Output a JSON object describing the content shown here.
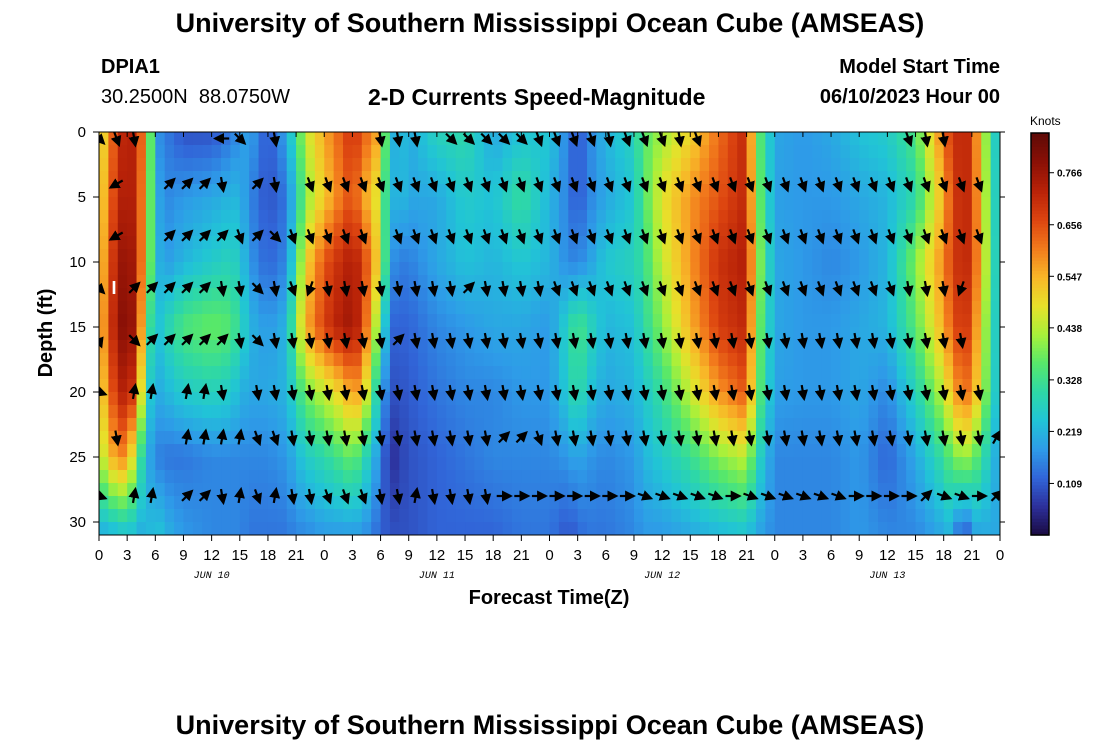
{
  "page": {
    "title": "University of Southern Mississippi Ocean Cube (AMSEAS)",
    "station_id": "DPIA1",
    "station_coords": "30.2500N  88.0750W",
    "subtitle": "2-D Currents Speed-Magnitude",
    "model_start_label": "Model Start Time",
    "model_start_value": "06/10/2023 Hour 00",
    "footer_title": "University of Southern Mississippi Ocean Cube (AMSEAS)"
  },
  "chart_data": {
    "type": "heatmap",
    "title": "2-D Currents Speed-Magnitude",
    "xlabel": "Forecast Time(Z)",
    "ylabel": "Depth (ft)",
    "x_unit": "hours since 06/10/2023 00Z",
    "xlim": [
      0,
      96
    ],
    "ylim": [
      31,
      0
    ],
    "x_ticks": [
      0,
      3,
      6,
      9,
      12,
      15,
      18,
      21,
      24,
      27,
      30,
      33,
      36,
      39,
      42,
      45,
      48,
      51,
      54,
      57,
      60,
      63,
      66,
      69,
      72,
      75,
      78,
      81,
      84,
      87,
      90,
      93,
      96
    ],
    "x_tick_labels": [
      "0",
      "3",
      "6",
      "9",
      "12",
      "15",
      "18",
      "21",
      "0",
      "3",
      "6",
      "9",
      "12",
      "15",
      "18",
      "21",
      "0",
      "3",
      "6",
      "9",
      "12",
      "15",
      "18",
      "21",
      "0",
      "3",
      "6",
      "9",
      "12",
      "15",
      "18",
      "21",
      "0"
    ],
    "date_labels": [
      {
        "hour": 12,
        "text": "JUN 10"
      },
      {
        "hour": 36,
        "text": "JUN 11"
      },
      {
        "hour": 60,
        "text": "JUN 12"
      },
      {
        "hour": 84,
        "text": "JUN 13"
      }
    ],
    "y_ticks": [
      0,
      5,
      10,
      15,
      20,
      25,
      30
    ],
    "y_tick_labels": [
      "0",
      "5",
      "10",
      "15",
      "20",
      "25",
      "30"
    ],
    "colorbar": {
      "label": "Knots",
      "min": 0.0,
      "max": 0.85,
      "ticks": [
        0.109,
        0.219,
        0.328,
        0.438,
        0.547,
        0.656,
        0.766
      ],
      "tick_labels": [
        "0.109",
        "0.219",
        "0.328",
        "0.438",
        "0.547",
        "0.656",
        "0.766"
      ],
      "colors": [
        "#1a0a40",
        "#2c2f9a",
        "#3165d8",
        "#2e9be8",
        "#21c4d6",
        "#2ed8a6",
        "#57e86a",
        "#a8f03a",
        "#e8e02a",
        "#f8b628",
        "#f27a1c",
        "#dc4410",
        "#b82208",
        "#8a1006",
        "#5e0a06"
      ]
    },
    "speed_field": {
      "times": [
        0,
        2,
        3,
        4,
        5,
        6,
        7,
        9,
        12,
        14,
        15,
        16,
        18,
        20,
        21,
        22,
        24,
        26,
        27,
        28,
        30,
        31,
        32,
        33,
        36,
        39,
        42,
        45,
        48,
        50,
        51,
        52,
        54,
        57,
        58,
        60,
        63,
        66,
        69,
        70,
        72,
        75,
        78,
        81,
        84,
        87,
        90,
        91,
        92,
        93,
        94,
        96
      ],
      "depths": [
        0,
        5,
        10,
        15,
        20,
        25,
        31
      ],
      "values": [
        [
          0.45,
          0.7,
          0.74,
          0.72,
          0.55,
          0.18,
          0.15,
          0.1,
          0.1,
          0.14,
          0.17,
          0.2,
          0.1,
          0.2,
          0.32,
          0.45,
          0.56,
          0.65,
          0.7,
          0.65,
          0.55,
          0.18,
          0.25,
          0.2,
          0.28,
          0.3,
          0.2,
          0.24,
          0.25,
          0.15,
          0.1,
          0.15,
          0.22,
          0.28,
          0.36,
          0.42,
          0.5,
          0.62,
          0.72,
          0.4,
          0.2,
          0.18,
          0.2,
          0.24,
          0.26,
          0.35,
          0.62,
          0.7,
          0.72,
          0.7,
          0.48,
          0.2
        ],
        [
          0.48,
          0.72,
          0.75,
          0.72,
          0.52,
          0.22,
          0.16,
          0.18,
          0.2,
          0.22,
          0.22,
          0.16,
          0.1,
          0.14,
          0.26,
          0.4,
          0.52,
          0.62,
          0.66,
          0.58,
          0.45,
          0.2,
          0.24,
          0.2,
          0.2,
          0.26,
          0.24,
          0.32,
          0.22,
          0.15,
          0.1,
          0.15,
          0.2,
          0.25,
          0.35,
          0.48,
          0.58,
          0.65,
          0.72,
          0.42,
          0.19,
          0.18,
          0.18,
          0.2,
          0.22,
          0.3,
          0.55,
          0.68,
          0.72,
          0.7,
          0.5,
          0.2
        ],
        [
          0.5,
          0.76,
          0.78,
          0.74,
          0.5,
          0.24,
          0.18,
          0.22,
          0.26,
          0.28,
          0.26,
          0.18,
          0.12,
          0.16,
          0.32,
          0.5,
          0.65,
          0.72,
          0.74,
          0.7,
          0.48,
          0.18,
          0.15,
          0.15,
          0.2,
          0.24,
          0.22,
          0.25,
          0.22,
          0.16,
          0.16,
          0.18,
          0.25,
          0.28,
          0.32,
          0.45,
          0.58,
          0.7,
          0.74,
          0.45,
          0.2,
          0.18,
          0.16,
          0.18,
          0.22,
          0.4,
          0.6,
          0.68,
          0.72,
          0.7,
          0.52,
          0.2
        ],
        [
          0.52,
          0.78,
          0.8,
          0.75,
          0.4,
          0.22,
          0.28,
          0.35,
          0.38,
          0.36,
          0.3,
          0.22,
          0.18,
          0.22,
          0.4,
          0.55,
          0.68,
          0.75,
          0.76,
          0.7,
          0.35,
          0.12,
          0.12,
          0.12,
          0.16,
          0.18,
          0.2,
          0.2,
          0.18,
          0.28,
          0.35,
          0.3,
          0.22,
          0.24,
          0.3,
          0.4,
          0.55,
          0.68,
          0.72,
          0.42,
          0.2,
          0.18,
          0.18,
          0.2,
          0.22,
          0.36,
          0.56,
          0.65,
          0.7,
          0.66,
          0.48,
          0.2
        ],
        [
          0.48,
          0.72,
          0.74,
          0.66,
          0.3,
          0.2,
          0.22,
          0.26,
          0.28,
          0.26,
          0.22,
          0.2,
          0.2,
          0.22,
          0.3,
          0.38,
          0.45,
          0.52,
          0.58,
          0.55,
          0.22,
          0.1,
          0.1,
          0.11,
          0.14,
          0.16,
          0.16,
          0.18,
          0.18,
          0.26,
          0.32,
          0.25,
          0.2,
          0.22,
          0.25,
          0.32,
          0.45,
          0.58,
          0.65,
          0.4,
          0.19,
          0.18,
          0.18,
          0.2,
          0.16,
          0.28,
          0.45,
          0.55,
          0.62,
          0.6,
          0.45,
          0.2
        ],
        [
          0.42,
          0.6,
          0.58,
          0.4,
          0.22,
          0.16,
          0.14,
          0.14,
          0.16,
          0.16,
          0.16,
          0.16,
          0.16,
          0.18,
          0.22,
          0.26,
          0.3,
          0.35,
          0.38,
          0.32,
          0.16,
          0.05,
          0.08,
          0.1,
          0.12,
          0.14,
          0.16,
          0.16,
          0.16,
          0.18,
          0.2,
          0.18,
          0.16,
          0.18,
          0.22,
          0.26,
          0.32,
          0.4,
          0.45,
          0.3,
          0.16,
          0.16,
          0.16,
          0.18,
          0.12,
          0.2,
          0.32,
          0.38,
          0.42,
          0.4,
          0.32,
          0.18
        ],
        [
          0.2,
          0.22,
          0.24,
          0.22,
          0.2,
          0.26,
          0.22,
          0.18,
          0.16,
          0.16,
          0.16,
          0.14,
          0.14,
          0.14,
          0.16,
          0.16,
          0.18,
          0.18,
          0.18,
          0.18,
          0.12,
          0.1,
          0.1,
          0.1,
          0.12,
          0.12,
          0.12,
          0.14,
          0.14,
          0.1,
          0.12,
          0.14,
          0.14,
          0.16,
          0.18,
          0.18,
          0.2,
          0.22,
          0.24,
          0.2,
          0.16,
          0.16,
          0.16,
          0.18,
          0.16,
          0.16,
          0.2,
          0.22,
          0.05,
          0.18,
          0.2,
          0.2
        ]
      ]
    },
    "vector_rows": [
      {
        "depth": 0.5,
        "dirs": [
          135,
          160,
          170,
          null,
          null,
          null,
          null,
          270,
          135,
          null,
          170,
          null,
          null,
          null,
          null,
          null,
          170,
          170,
          170,
          null,
          135,
          135,
          135,
          135,
          135,
          160,
          160,
          160,
          160,
          170,
          160,
          160,
          160,
          170,
          160,
          null,
          null,
          null,
          null,
          null,
          null,
          null,
          null,
          null,
          null,
          null,
          160,
          170,
          170,
          null,
          null,
          null
        ]
      },
      {
        "depth": 4.0,
        "dirs": [
          null,
          240,
          null,
          null,
          45,
          45,
          45,
          170,
          null,
          45,
          170,
          null,
          160,
          160,
          160,
          160,
          160,
          160,
          160,
          160,
          160,
          160,
          160,
          160,
          160,
          160,
          160,
          160,
          160,
          160,
          160,
          160,
          160,
          160,
          160,
          160,
          160,
          160,
          160,
          160,
          160,
          160,
          160,
          160,
          160,
          160,
          160,
          160,
          160,
          160,
          160,
          null
        ]
      },
      {
        "depth": 8.0,
        "dirs": [
          null,
          240,
          null,
          null,
          45,
          45,
          45,
          45,
          160,
          45,
          135,
          160,
          160,
          160,
          160,
          160,
          null,
          160,
          160,
          160,
          160,
          160,
          160,
          160,
          160,
          160,
          160,
          160,
          160,
          160,
          160,
          160,
          160,
          160,
          160,
          160,
          160,
          160,
          160,
          160,
          160,
          160,
          160,
          160,
          160,
          160,
          160,
          160,
          160,
          160,
          160,
          null
        ]
      },
      {
        "depth": 12.0,
        "dirs": [
          135,
          null,
          45,
          45,
          45,
          45,
          45,
          170,
          170,
          135,
          170,
          160,
          200,
          170,
          170,
          170,
          170,
          170,
          170,
          170,
          170,
          45,
          170,
          170,
          170,
          170,
          160,
          160,
          160,
          160,
          160,
          160,
          160,
          160,
          160,
          160,
          160,
          160,
          160,
          160,
          160,
          160,
          160,
          160,
          160,
          160,
          170,
          170,
          170,
          200,
          null,
          null
        ]
      },
      {
        "depth": 16.0,
        "dirs": [
          160,
          null,
          135,
          45,
          45,
          45,
          45,
          45,
          170,
          135,
          170,
          170,
          170,
          170,
          170,
          170,
          170,
          45,
          170,
          170,
          170,
          170,
          170,
          170,
          170,
          170,
          170,
          170,
          170,
          170,
          170,
          170,
          170,
          170,
          170,
          170,
          170,
          170,
          170,
          170,
          170,
          170,
          170,
          170,
          170,
          170,
          170,
          170,
          170,
          170,
          null,
          null
        ]
      },
      {
        "depth": 20.0,
        "dirs": [
          110,
          null,
          10,
          10,
          null,
          10,
          10,
          170,
          null,
          170,
          170,
          170,
          170,
          170,
          170,
          170,
          170,
          170,
          170,
          170,
          170,
          170,
          170,
          170,
          170,
          170,
          170,
          170,
          170,
          170,
          170,
          170,
          170,
          170,
          170,
          170,
          170,
          170,
          170,
          170,
          170,
          170,
          170,
          170,
          170,
          170,
          170,
          170,
          170,
          170,
          170,
          null
        ]
      },
      {
        "depth": 23.5,
        "dirs": [
          null,
          170,
          null,
          null,
          null,
          10,
          10,
          10,
          10,
          160,
          160,
          170,
          170,
          170,
          170,
          170,
          170,
          170,
          170,
          170,
          170,
          170,
          170,
          45,
          45,
          160,
          170,
          170,
          170,
          170,
          170,
          170,
          170,
          170,
          170,
          170,
          170,
          170,
          170,
          170,
          170,
          170,
          170,
          170,
          170,
          170,
          170,
          170,
          170,
          170,
          170,
          30
        ]
      },
      {
        "depth": 28.0,
        "dirs": [
          110,
          null,
          10,
          10,
          null,
          45,
          45,
          170,
          10,
          160,
          10,
          170,
          170,
          160,
          160,
          160,
          170,
          170,
          10,
          170,
          170,
          170,
          170,
          90,
          90,
          90,
          90,
          90,
          90,
          90,
          90,
          110,
          110,
          110,
          110,
          110,
          90,
          110,
          110,
          110,
          110,
          110,
          110,
          90,
          90,
          90,
          90,
          45,
          110,
          110,
          90,
          45
        ]
      }
    ]
  }
}
